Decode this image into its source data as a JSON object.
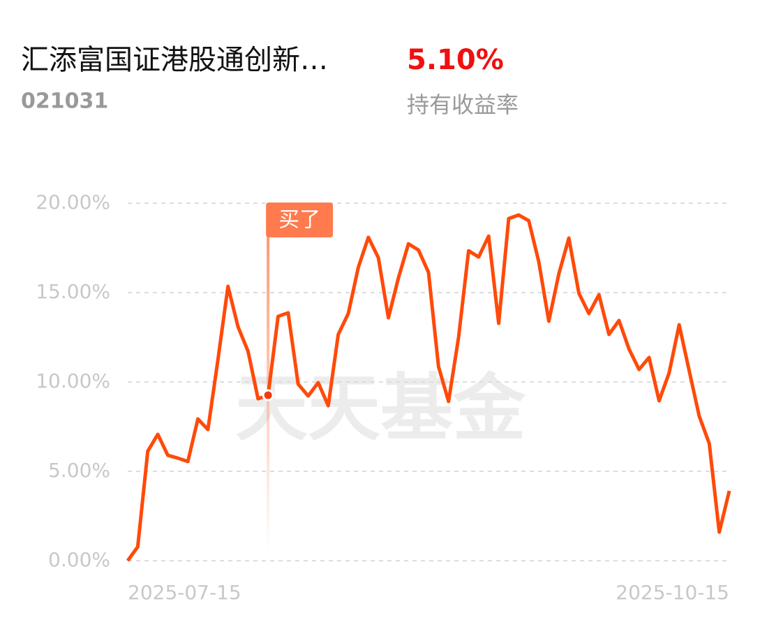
{
  "header": {
    "title": "汇添富国证港股通创新…",
    "return": "5.10%",
    "code": "021031",
    "return_label": "持有收益率"
  },
  "chart_data": {
    "type": "line",
    "watermark": "天天基金",
    "categories": [
      "2025-07-15",
      null,
      null,
      null,
      null,
      null,
      null,
      null,
      null,
      null,
      null,
      null,
      null,
      null,
      null,
      null,
      null,
      null,
      null,
      null,
      null,
      null,
      null,
      null,
      null,
      null,
      null,
      null,
      null,
      null,
      null,
      null,
      null,
      null,
      null,
      null,
      null,
      null,
      null,
      null,
      null,
      null,
      null,
      null,
      null,
      null,
      null,
      null,
      null,
      null,
      null,
      null,
      null,
      null,
      null,
      null,
      null,
      null,
      null,
      null,
      "2025-10-15"
    ],
    "series": [
      {
        "name": null,
        "color": "#ff4a0a",
        "values": [
          0,
          0.78,
          6.13,
          7.07,
          5.9,
          5.74,
          5.55,
          7.93,
          7.34,
          11.25,
          15.35,
          13.09,
          11.72,
          9.06,
          9.26,
          13.67,
          13.87,
          9.88,
          9.22,
          9.96,
          8.67,
          12.66,
          13.83,
          16.41,
          18.09,
          16.95,
          13.59,
          15.82,
          17.73,
          17.38,
          16.13,
          10.86,
          8.91,
          12.5,
          17.34,
          16.99,
          18.16,
          13.28,
          19.14,
          19.34,
          19.02,
          16.72,
          13.4,
          16.05,
          18.05,
          14.96,
          13.83,
          14.88,
          12.66,
          13.44,
          11.84,
          10.7,
          11.37,
          8.95,
          10.51,
          13.2,
          10.63,
          8.09,
          6.56,
          1.6,
          3.91
        ]
      }
    ],
    "ylim": [
      0,
      20
    ],
    "yticks": [
      {
        "value": 0,
        "label": "0.00%"
      },
      {
        "value": 5,
        "label": "5.00%"
      },
      {
        "value": 10,
        "label": "10.00%"
      },
      {
        "value": 15,
        "label": "15.00%"
      },
      {
        "value": 20,
        "label": "20.00%"
      }
    ],
    "grid": true,
    "annotations": [
      {
        "text": "买了",
        "index": 14
      }
    ]
  }
}
